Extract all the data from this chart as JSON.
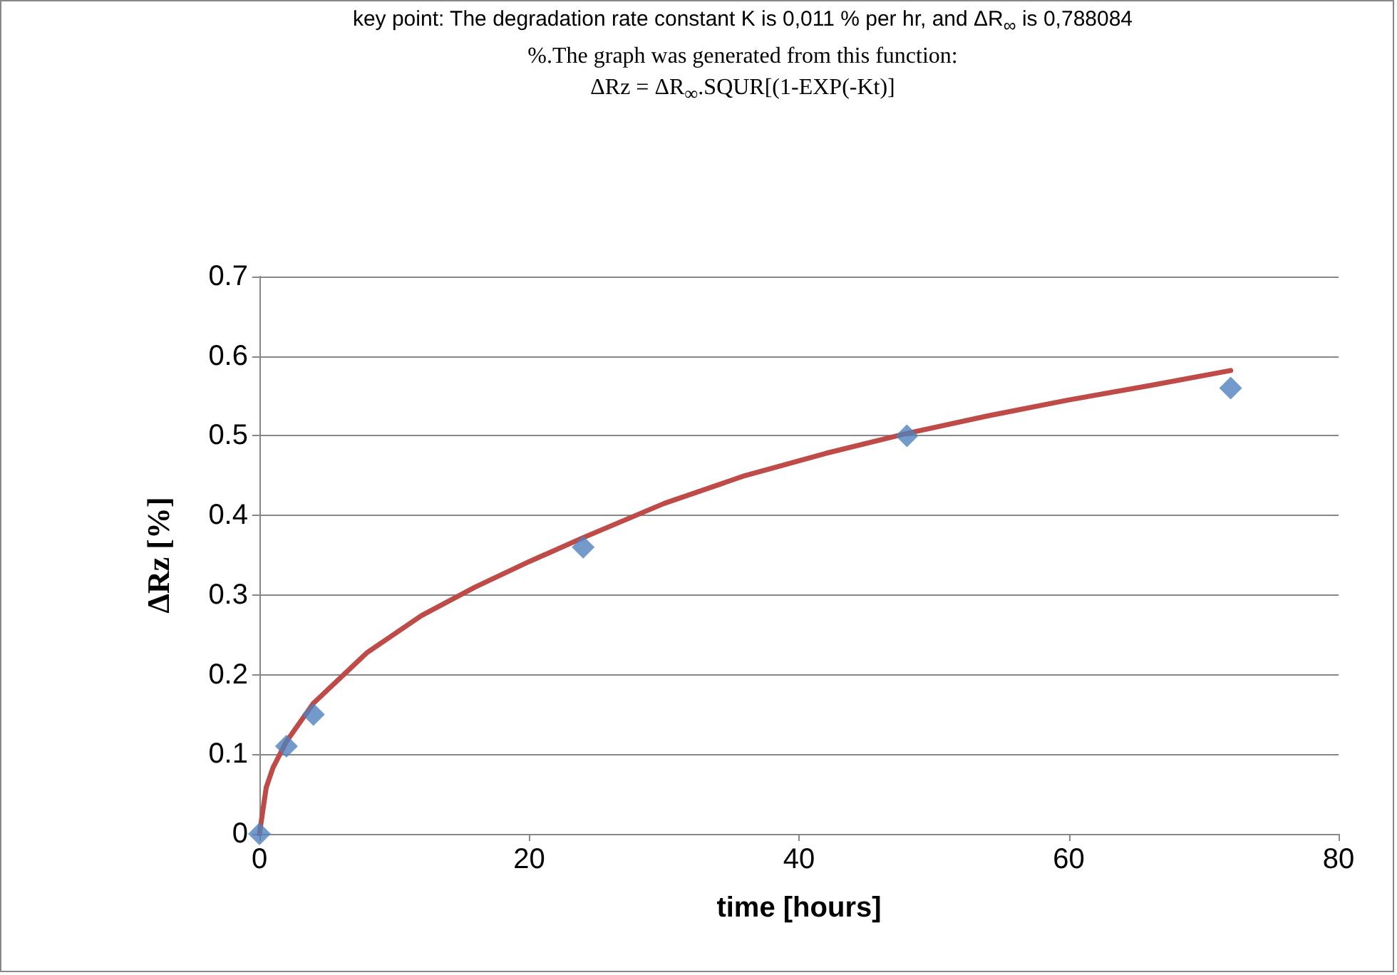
{
  "chart_data": {
    "type": "scatter",
    "title": "key point: The degradation rate constant  K is 0,011 % per hr, and ΔR$_{∞}$ is 0,788084\n%.The graph was generated  from this function:\nΔRz = ΔR$_{∞}$.SQUR[(1-EXP(-Kt)]",
    "xlabel": "time [hours]",
    "ylabel": "ΔRz [%]",
    "series": [
      {
        "color": "#4f81bd",
        "marker": "diamond",
        "x": [
          0,
          2,
          4,
          24,
          48,
          72
        ],
        "values": [
          0,
          0.11,
          0.15,
          0.36,
          0.5,
          0.56
        ]
      },
      {
        "type": "line",
        "color": "#be4b48",
        "marker": "none",
        "line_style": "solid",
        "x": [
          0,
          0.5,
          1,
          2,
          4,
          8,
          12,
          16,
          20,
          24,
          30,
          36,
          42,
          48,
          54,
          60,
          66,
          72
        ],
        "values": [
          0,
          0.058,
          0.083,
          0.116,
          0.164,
          0.228,
          0.274,
          0.31,
          0.342,
          0.372,
          0.415,
          0.45,
          0.478,
          0.503,
          0.525,
          0.545,
          0.563,
          0.582
        ]
      }
    ],
    "xlim": [
      0,
      80
    ],
    "xticks": [
      0,
      20,
      40,
      60,
      80
    ],
    "ylim": [
      0,
      0.7
    ],
    "yticks": [
      0,
      0.1,
      0.2,
      0.3,
      0.4,
      0.5,
      0.6,
      0.7
    ],
    "grid": "y"
  }
}
